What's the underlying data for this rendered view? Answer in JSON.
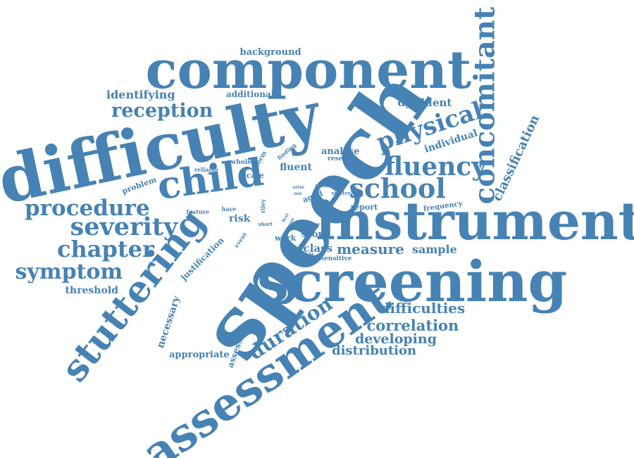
{
  "cloud": {
    "color": "#4682b4",
    "words": [
      {
        "text": "speech",
        "rotation": "diagonal"
      },
      {
        "text": "difficulty",
        "rotation": "slight"
      },
      {
        "text": "component",
        "rotation": "horizontal"
      },
      {
        "text": "screening",
        "rotation": "horizontal"
      },
      {
        "text": "instrument",
        "rotation": "horizontal"
      },
      {
        "text": "assessment",
        "rotation": "diagonal"
      },
      {
        "text": "child",
        "rotation": "slight"
      },
      {
        "text": "stuttering",
        "rotation": "diagonal"
      },
      {
        "text": "concomitant",
        "rotation": "vertical"
      },
      {
        "text": "school",
        "rotation": "horizontal"
      },
      {
        "text": "fluency",
        "rotation": "horizontal"
      },
      {
        "text": "physical",
        "rotation": "diagonal"
      },
      {
        "text": "procedure",
        "rotation": "horizontal"
      },
      {
        "text": "severity",
        "rotation": "horizontal"
      },
      {
        "text": "chapter",
        "rotation": "horizontal"
      },
      {
        "text": "symptom",
        "rotation": "horizontal"
      },
      {
        "text": "reception",
        "rotation": "horizontal"
      },
      {
        "text": "duration",
        "rotation": "diagonal"
      },
      {
        "text": "classification",
        "rotation": "diagonal"
      },
      {
        "text": "difficulties",
        "rotation": "horizontal"
      },
      {
        "text": "correlation",
        "rotation": "horizontal"
      },
      {
        "text": "developing",
        "rotation": "horizontal"
      },
      {
        "text": "distribution",
        "rotation": "horizontal"
      },
      {
        "text": "measure",
        "rotation": "horizontal"
      },
      {
        "text": "sample",
        "rotation": "horizontal"
      },
      {
        "text": "class",
        "rotation": "horizontal"
      },
      {
        "text": "identifying",
        "rotation": "horizontal"
      },
      {
        "text": "dysfluent",
        "rotation": "horizontal"
      },
      {
        "text": "background",
        "rotation": "horizontal"
      },
      {
        "text": "additional",
        "rotation": "horizontal"
      },
      {
        "text": "individual",
        "rotation": "diagonal"
      },
      {
        "text": "threshold",
        "rotation": "horizontal"
      },
      {
        "text": "necessary",
        "rotation": "diagonal"
      },
      {
        "text": "appropriate",
        "rotation": "horizontal"
      },
      {
        "text": "assessing",
        "rotation": "diagonal"
      },
      {
        "text": "justification",
        "rotation": "diagonal"
      },
      {
        "text": "problem",
        "rotation": "diagonal"
      },
      {
        "text": "fluent",
        "rotation": "horizontal"
      },
      {
        "text": "analyse",
        "rotation": "horizontal"
      },
      {
        "text": "research",
        "rotation": "horizontal"
      },
      {
        "text": "report",
        "rotation": "horizontal"
      },
      {
        "text": "frequency",
        "rotation": "horizontal"
      },
      {
        "text": "score",
        "rotation": "horizontal"
      },
      {
        "text": "year",
        "rotation": "horizontal"
      },
      {
        "text": "work",
        "rotation": "horizontal"
      },
      {
        "text": "risk",
        "rotation": "horizontal"
      },
      {
        "text": "aged",
        "rotation": "diagonal"
      },
      {
        "text": "scale",
        "rotation": "horizontal"
      },
      {
        "text": "whole",
        "rotation": "horizontal"
      },
      {
        "text": "form",
        "rotation": "diagonal"
      },
      {
        "text": "finding",
        "rotation": "diagonal"
      },
      {
        "text": "reliable",
        "rotation": "horizontal"
      },
      {
        "text": "feature",
        "rotation": "horizontal"
      },
      {
        "text": "have",
        "rotation": "horizontal"
      },
      {
        "text": "event",
        "rotation": "diagonal"
      },
      {
        "text": "short",
        "rotation": "horizontal"
      },
      {
        "text": "result",
        "rotation": "horizontal"
      },
      {
        "text": "sensitive",
        "rotation": "horizontal"
      },
      {
        "text": "riley",
        "rotation": "vertical"
      },
      {
        "text": "studies",
        "rotation": "horizontal"
      },
      {
        "text": "stutter",
        "rotation": "horizontal"
      },
      {
        "text": "arise",
        "rotation": "horizontal"
      },
      {
        "text": "use",
        "rotation": "horizontal"
      },
      {
        "text": "first",
        "rotation": "diagonal"
      },
      {
        "text": "point",
        "rotation": "diagonal"
      }
    ]
  }
}
